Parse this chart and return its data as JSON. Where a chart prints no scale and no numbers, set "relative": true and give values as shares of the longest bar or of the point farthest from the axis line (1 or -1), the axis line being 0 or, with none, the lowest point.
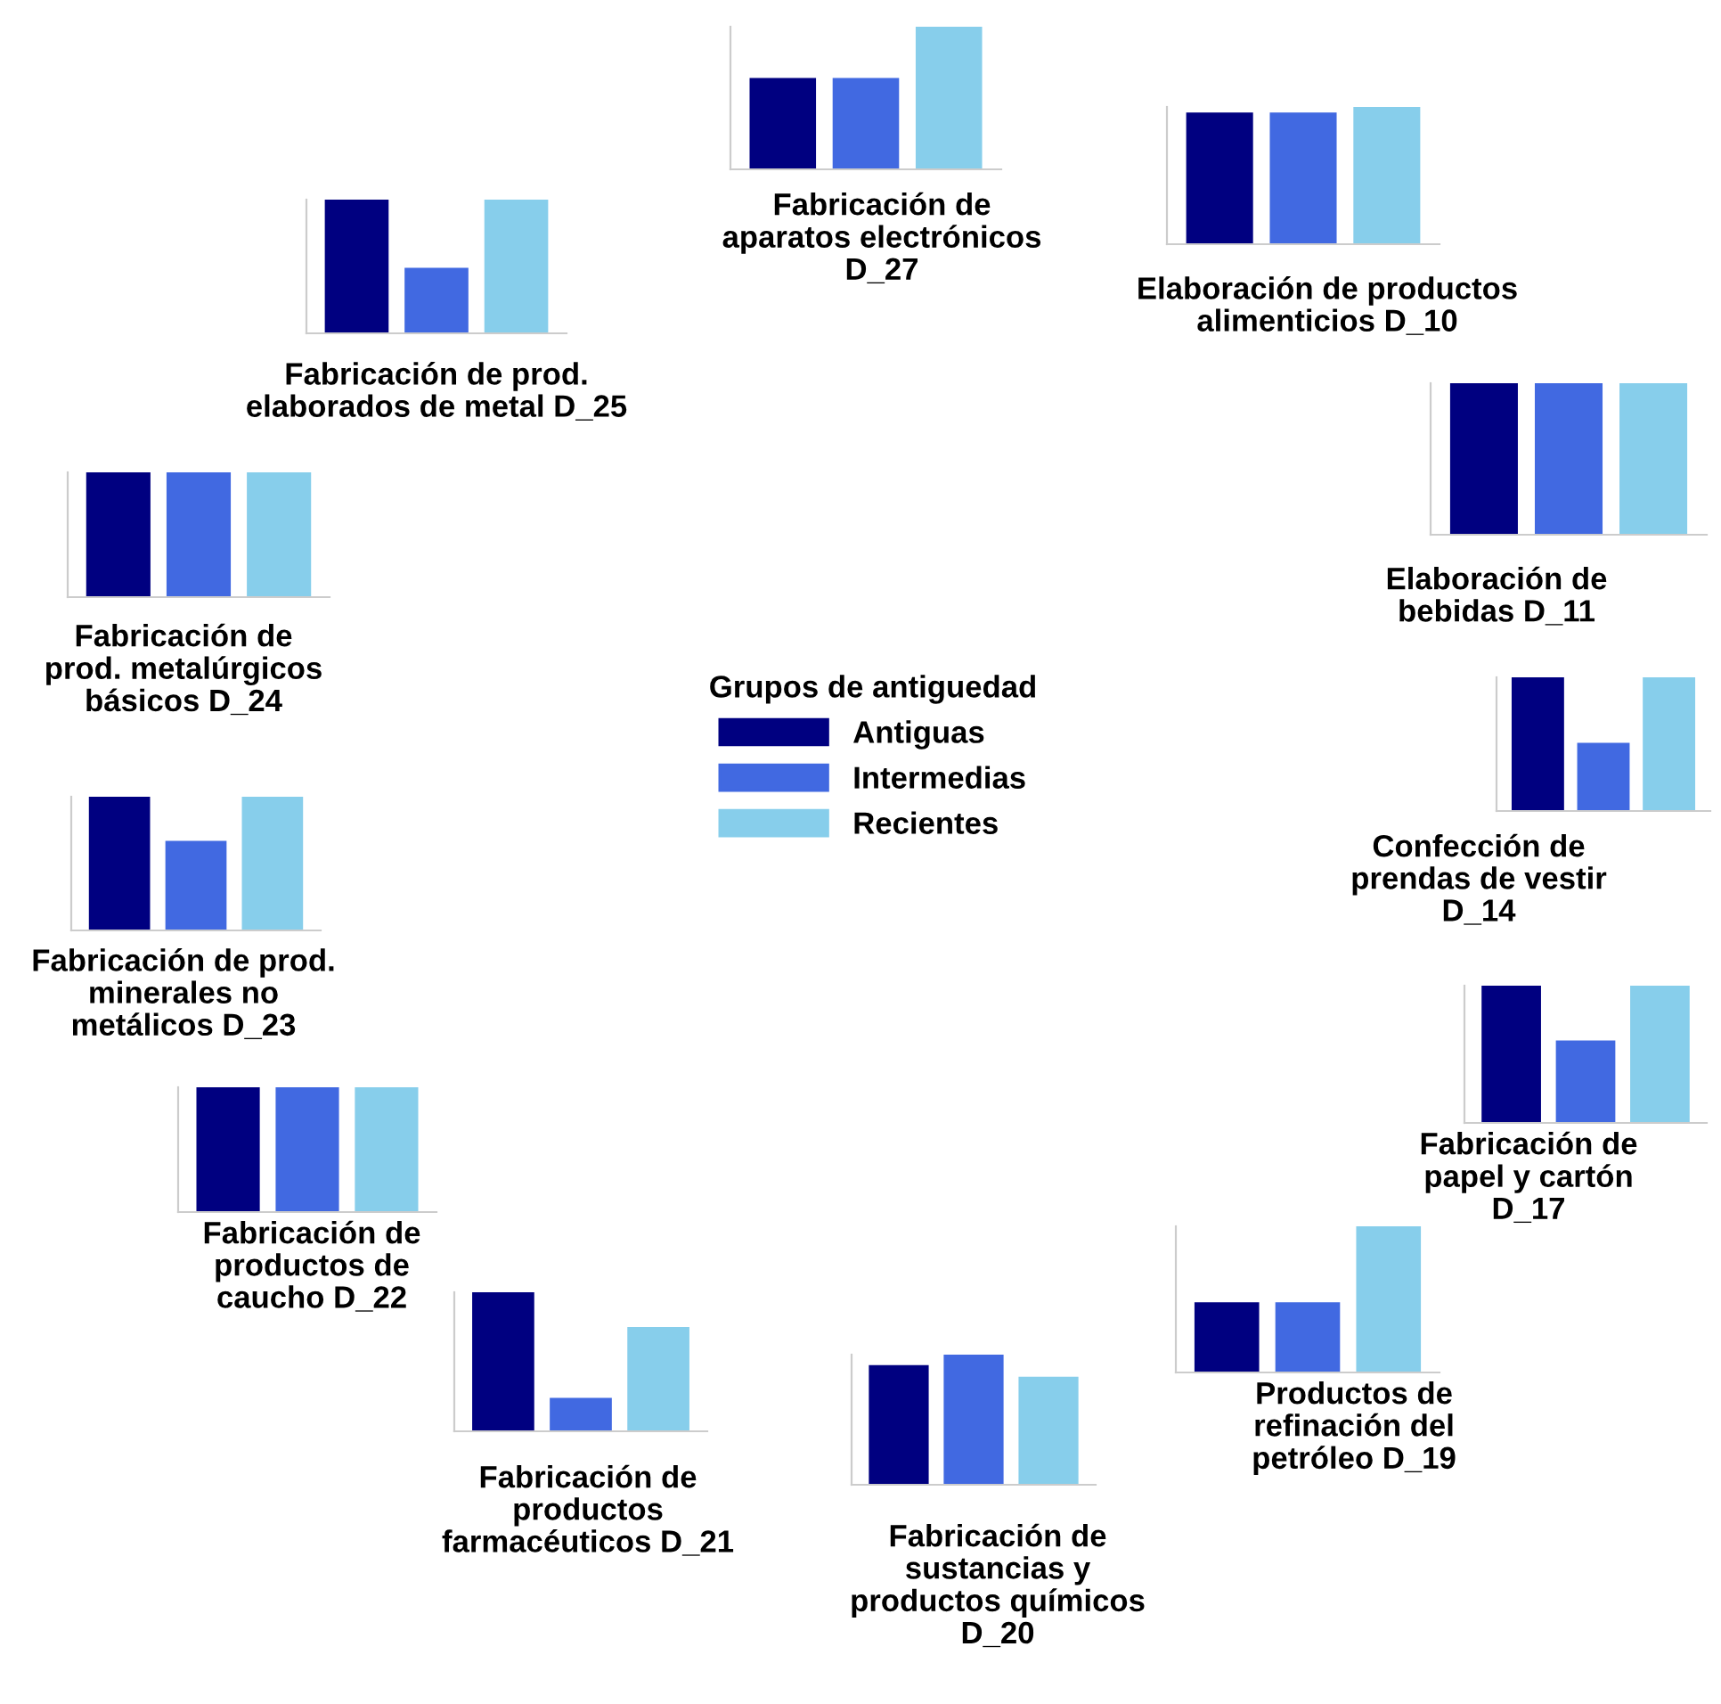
{
  "chart_data": [
    {
      "type": "bar",
      "title": "Fabricación de\nprod. metalúrgicos\nbásicos D_24",
      "relative": true,
      "categories": [
        null
      ],
      "series": [
        {
          "color": "#000080",
          "values": [
            1
          ]
        },
        {
          "color": "#4169e1",
          "values": [
            1
          ]
        },
        {
          "color": "#87ceeb",
          "values": [
            1
          ]
        }
      ]
    },
    {
      "type": "bar",
      "title": "Elaboración de productos\nalimenticios D_10",
      "relative": true,
      "categories": [
        null
      ],
      "series": [
        {
          "color": "#000080",
          "values": [
            0.96
          ]
        },
        {
          "color": "#4169e1",
          "values": [
            0.96
          ]
        },
        {
          "color": "#87ceeb",
          "values": [
            1
          ]
        }
      ]
    },
    {
      "type": "bar",
      "title": "Fabricación de prod.\nelaborados de metal D_25",
      "relative": true,
      "categories": [
        null
      ],
      "series": [
        {
          "color": "#000080",
          "values": [
            1
          ]
        },
        {
          "color": "#4169e1",
          "values": [
            0.49
          ]
        },
        {
          "color": "#87ceeb",
          "values": [
            1
          ]
        }
      ]
    },
    {
      "type": "bar",
      "title": "Elaboración de\nbebidas D_11",
      "relative": true,
      "categories": [
        null
      ],
      "series": [
        {
          "color": "#000080",
          "values": [
            1
          ]
        },
        {
          "color": "#4169e1",
          "values": [
            1
          ]
        },
        {
          "color": "#87ceeb",
          "values": [
            1
          ]
        }
      ]
    },
    {
      "type": "bar",
      "title": "Fabricación de\naparatos electrónicos\nD_27",
      "relative": true,
      "categories": [
        null
      ],
      "legend": "bottom",
      "legend_title": "Grupos de antiguedad",
      "series": [
        {
          "name": "Antiguas",
          "color": "#000080",
          "values": [
            0.64
          ]
        },
        {
          "name": "Intermedias",
          "color": "#4169e1",
          "values": [
            0.64
          ]
        },
        {
          "name": "Recientes",
          "color": "#87ceeb",
          "values": [
            1
          ]
        }
      ]
    },
    {
      "type": "bar",
      "title": "Confección de\nprendas de vestir\nD_14",
      "relative": true,
      "categories": [
        null
      ],
      "series": [
        {
          "color": "#000080",
          "values": [
            1
          ]
        },
        {
          "color": "#4169e1",
          "values": [
            0.51
          ]
        },
        {
          "color": "#87ceeb",
          "values": [
            1
          ]
        }
      ]
    },
    {
      "type": "bar",
      "title": "Fabricación de prod.\nminerales no\nmetálicos D_23",
      "relative": true,
      "categories": [
        null
      ],
      "series": [
        {
          "color": "#000080",
          "values": [
            1
          ]
        },
        {
          "color": "#4169e1",
          "values": [
            0.67
          ]
        },
        {
          "color": "#87ceeb",
          "values": [
            1
          ]
        }
      ]
    },
    {
      "type": "bar",
      "title": "Fabricación de\npapel y cartón\nD_17",
      "relative": true,
      "categories": [
        null
      ],
      "series": [
        {
          "color": "#000080",
          "values": [
            1
          ]
        },
        {
          "color": "#4169e1",
          "values": [
            0.6
          ]
        },
        {
          "color": "#87ceeb",
          "values": [
            1
          ]
        }
      ]
    },
    {
      "type": "bar",
      "title": "Fabricación de\nproductos de\ncaucho D_22",
      "relative": true,
      "categories": [
        null
      ],
      "series": [
        {
          "color": "#000080",
          "values": [
            1
          ]
        },
        {
          "color": "#4169e1",
          "values": [
            1
          ]
        },
        {
          "color": "#87ceeb",
          "values": [
            1
          ]
        }
      ]
    },
    {
      "type": "bar",
      "title": "Productos de\nrefinación del\npetróleo D_19",
      "relative": true,
      "categories": [
        null
      ],
      "series": [
        {
          "color": "#000080",
          "values": [
            0.48
          ]
        },
        {
          "color": "#4169e1",
          "values": [
            0.48
          ]
        },
        {
          "color": "#87ceeb",
          "values": [
            1
          ]
        }
      ]
    },
    {
      "type": "bar",
      "title": "Fabricación de\nproductos\nfarmacéuticos D_21",
      "relative": true,
      "categories": [
        null
      ],
      "series": [
        {
          "color": "#000080",
          "values": [
            1
          ]
        },
        {
          "color": "#4169e1",
          "values": [
            0.24
          ]
        },
        {
          "color": "#87ceeb",
          "values": [
            0.75
          ]
        }
      ]
    },
    {
      "type": "bar",
      "title": "Fabricación de\nsustancias y\nproductos químicos\nD_20",
      "relative": true,
      "categories": [
        null
      ],
      "series": [
        {
          "color": "#000080",
          "values": [
            0.92
          ]
        },
        {
          "color": "#4169e1",
          "values": [
            1
          ]
        },
        {
          "color": "#87ceeb",
          "values": [
            0.83
          ]
        }
      ]
    }
  ]
}
